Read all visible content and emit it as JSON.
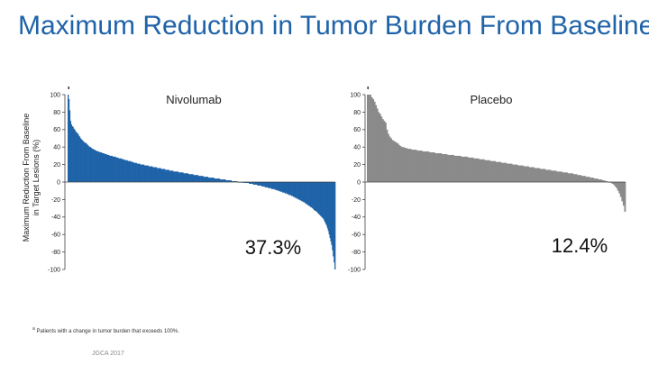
{
  "slide": {
    "title": "Maximum Reduction in Tumor Burden From Baseline",
    "y_axis_label_line1": "Maximum Reduction From Baseline",
    "y_axis_label_line2": "in Target Lesions (%)",
    "footnote_marker": "a",
    "footnote_text": "Patients with a change in tumor burden that exceeds 100%.",
    "conference": "JGCA 2017"
  },
  "colors": {
    "title": "#1f63a8",
    "nivolumab": "#1f63a8",
    "placebo": "#8a8a8a"
  },
  "chart_data": [
    {
      "type": "bar",
      "title": "Nivolumab",
      "annotation": "37.3%",
      "ylim": [
        -100,
        100
      ],
      "yticks": [
        "100",
        "80",
        "60",
        "40",
        "20",
        "0",
        "-20",
        "-40",
        "-60",
        "-80",
        "-100"
      ],
      "ytick_values": [
        100,
        80,
        60,
        40,
        20,
        0,
        -20,
        -40,
        -60,
        -80,
        -100
      ],
      "outlier_markers": 1,
      "values": [
        100,
        95,
        82,
        70,
        66,
        64,
        63,
        61,
        60,
        58,
        57,
        56,
        55,
        53,
        52,
        50,
        49,
        48,
        47,
        46,
        45,
        45,
        44,
        43,
        42,
        41,
        40,
        40,
        39,
        38,
        38,
        37,
        37,
        36,
        36,
        35,
        35,
        35,
        34,
        34,
        34,
        33,
        33,
        33,
        32,
        32,
        32,
        31,
        31,
        31,
        30,
        30,
        30,
        30,
        29,
        29,
        29,
        29,
        28,
        28,
        28,
        27,
        27,
        27,
        27,
        26,
        26,
        26,
        25,
        25,
        25,
        25,
        24,
        24,
        24,
        24,
        23,
        23,
        23,
        22,
        22,
        22,
        22,
        21,
        21,
        21,
        21,
        20,
        20,
        20,
        20,
        20,
        19,
        19,
        19,
        19,
        19,
        18,
        18,
        18,
        18,
        18,
        17,
        17,
        17,
        17,
        17,
        16,
        16,
        16,
        16,
        16,
        15,
        15,
        15,
        15,
        15,
        14,
        14,
        14,
        14,
        14,
        13,
        13,
        13,
        13,
        13,
        12,
        12,
        12,
        12,
        12,
        12,
        11,
        11,
        11,
        11,
        11,
        11,
        10,
        10,
        10,
        10,
        10,
        10,
        9,
        9,
        9,
        9,
        9,
        9,
        8,
        8,
        8,
        8,
        8,
        8,
        7,
        7,
        7,
        7,
        7,
        7,
        6,
        6,
        6,
        6,
        6,
        6,
        5,
        5,
        5,
        5,
        5,
        5,
        5,
        4,
        4,
        4,
        4,
        4,
        4,
        4,
        3,
        3,
        3,
        3,
        3,
        3,
        3,
        2,
        2,
        2,
        2,
        2,
        2,
        2,
        1,
        1,
        1,
        1,
        1,
        1,
        1,
        0,
        0,
        0,
        0,
        0,
        0,
        0,
        -1,
        -1,
        -1,
        -1,
        -1,
        -1,
        -1,
        -2,
        -2,
        -2,
        -2,
        -2,
        -3,
        -3,
        -3,
        -3,
        -3,
        -4,
        -4,
        -4,
        -4,
        -4,
        -5,
        -5,
        -5,
        -5,
        -6,
        -6,
        -6,
        -6,
        -7,
        -7,
        -7,
        -7,
        -8,
        -8,
        -8,
        -8,
        -9,
        -9,
        -9,
        -10,
        -10,
        -10,
        -11,
        -11,
        -11,
        -12,
        -12,
        -12,
        -13,
        -13,
        -13,
        -14,
        -14,
        -15,
        -15,
        -15,
        -16,
        -16,
        -17,
        -17,
        -18,
        -18,
        -19,
        -19,
        -20,
        -20,
        -21,
        -21,
        -22,
        -22,
        -23,
        -23,
        -24,
        -25,
        -25,
        -26,
        -27,
        -27,
        -28,
        -29,
        -29,
        -30,
        -31,
        -32,
        -33,
        -33,
        -34,
        -35,
        -36,
        -37,
        -38,
        -39,
        -40,
        -41,
        -42,
        -44,
        -46,
        -48,
        -50,
        -53,
        -56,
        -60,
        -64,
        -68,
        -72,
        -78,
        -85,
        -92,
        -100
      ]
    },
    {
      "type": "bar",
      "title": "Placebo",
      "annotation": "12.4%",
      "ylim": [
        -100,
        100
      ],
      "yticks": [
        "100",
        "80",
        "60",
        "40",
        "20",
        "0",
        "-20",
        "-40",
        "-60",
        "-80",
        "-100"
      ],
      "ytick_values": [
        100,
        80,
        60,
        40,
        20,
        0,
        -20,
        -40,
        -60,
        -80,
        -100
      ],
      "outlier_markers": 1,
      "values": [
        100,
        100,
        100,
        97,
        95,
        92,
        88,
        84,
        80,
        78,
        75,
        72,
        70,
        68,
        60,
        55,
        52,
        50,
        48,
        47,
        46,
        45,
        44,
        42,
        41,
        40,
        40,
        39,
        39,
        38,
        38,
        38,
        37,
        37,
        37,
        37,
        36,
        36,
        36,
        36,
        35,
        35,
        35,
        35,
        35,
        34,
        34,
        34,
        34,
        33,
        33,
        33,
        33,
        33,
        32,
        32,
        32,
        32,
        31,
        31,
        31,
        31,
        31,
        30,
        30,
        30,
        30,
        30,
        29,
        29,
        29,
        29,
        29,
        28,
        28,
        28,
        28,
        27,
        27,
        27,
        27,
        26,
        26,
        26,
        26,
        25,
        25,
        25,
        25,
        24,
        24,
        24,
        24,
        23,
        23,
        23,
        23,
        22,
        22,
        22,
        22,
        21,
        21,
        21,
        21,
        20,
        20,
        20,
        20,
        19,
        19,
        19,
        19,
        18,
        18,
        18,
        18,
        17,
        17,
        17,
        17,
        16,
        16,
        16,
        16,
        15,
        15,
        15,
        15,
        14,
        14,
        14,
        14,
        13,
        13,
        13,
        13,
        12,
        12,
        12,
        12,
        11,
        11,
        11,
        11,
        10,
        10,
        10,
        10,
        9,
        9,
        9,
        8,
        8,
        8,
        7,
        7,
        7,
        6,
        6,
        6,
        5,
        5,
        5,
        4,
        4,
        4,
        3,
        3,
        3,
        2,
        2,
        1,
        1,
        0,
        0,
        -1,
        -2,
        -3,
        -5,
        -7,
        -10,
        -13,
        -17,
        -22,
        -27,
        -34
      ]
    }
  ]
}
